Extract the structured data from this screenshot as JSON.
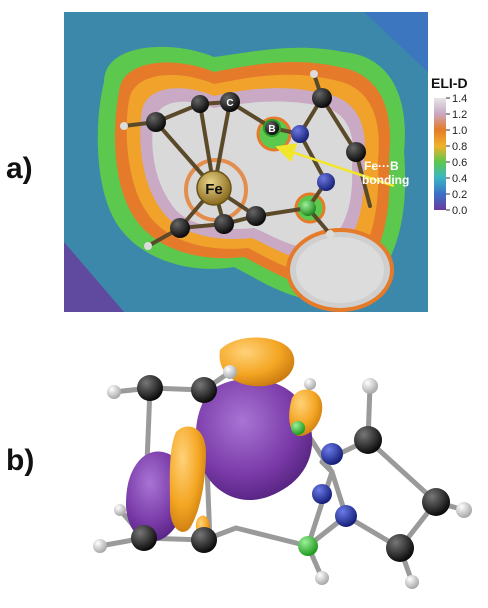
{
  "panels": {
    "a": "a)",
    "b": "b)"
  },
  "elf_map": {
    "atom_labels": {
      "fe": "Fe",
      "c": "C",
      "b": "B"
    },
    "annotation_line1": "Fe···B",
    "annotation_line2": "bonding",
    "colors": {
      "arrow": "#f2e62a",
      "background": "#3aa3a0"
    }
  },
  "colorbar": {
    "title": "ELI-D",
    "ticks": [
      "1.4",
      "1.2",
      "1.0",
      "0.8",
      "0.6",
      "0.4",
      "0.2",
      "0.0"
    ],
    "colors": [
      "#d9d9d9",
      "#c9a9c4",
      "#e57b2a",
      "#f0a22a",
      "#5cc84d",
      "#3bb6c2",
      "#3c6fc6",
      "#6a3b9c"
    ]
  },
  "orbital": {
    "colors": {
      "positive_lobe": "#f4a623",
      "negative_lobe": "#7a3aa8",
      "carbon": "#1a1a1a",
      "nitrogen": "#2233aa",
      "boron": "#44cc44",
      "hydrogen": "#e6e6e6"
    }
  }
}
